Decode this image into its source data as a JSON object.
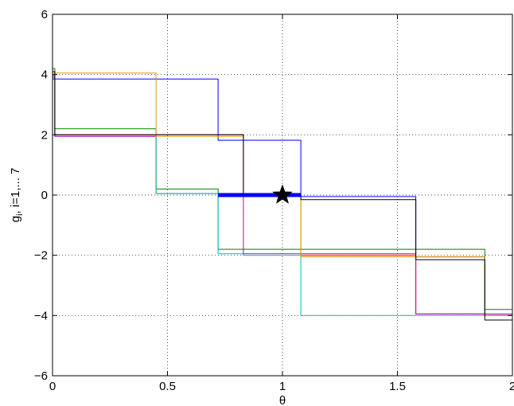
{
  "chart_data": {
    "type": "line",
    "title": "",
    "xlabel": "θ",
    "ylabel": "g_i, i=1,... 7",
    "xlim": [
      0,
      2
    ],
    "ylim": [
      -6,
      6
    ],
    "grid": true,
    "x_ticks": [
      0,
      0.5,
      1,
      1.5,
      2
    ],
    "x_tick_labels": [
      "0",
      "0.5",
      "1",
      "1.5",
      "2"
    ],
    "y_ticks": [
      -6,
      -4,
      -2,
      0,
      2,
      4,
      6
    ],
    "y_tick_labels": [
      "−6",
      "−4",
      "−2",
      "0",
      "2",
      "4",
      "6"
    ],
    "series": [
      {
        "color": "#ff0000",
        "x": [
          0,
          0.01,
          0.01,
          0.45,
          0.45,
          0.72,
          0.72,
          1.08,
          1.08,
          1.58,
          1.58,
          1.88,
          1.88,
          2
        ],
        "y": [
          4.0,
          4.0,
          2.0,
          2.0,
          0.05,
          0.05,
          0,
          0,
          -2.0,
          -2.0,
          -3.95,
          -3.95,
          -4.0,
          -4.0
        ]
      },
      {
        "color": "#0000ff",
        "x": [
          0,
          0.01,
          0.01,
          0.72,
          0.72,
          1.08,
          1.08,
          1.58,
          1.58,
          1.88,
          1.88,
          2
        ],
        "y": [
          3.85,
          3.85,
          3.85,
          3.85,
          1.82,
          1.82,
          -0.05,
          -0.05,
          -2.05,
          -2.05,
          -4.0,
          -4.0
        ]
      },
      {
        "color": "#008000",
        "x": [
          0,
          0.01,
          0.01,
          0.45,
          0.45,
          0.72,
          0.72,
          1.08,
          1.08,
          1.58,
          1.58,
          1.88,
          1.88,
          2
        ],
        "y": [
          4.2,
          4.2,
          2.2,
          2.2,
          0.2,
          0.2,
          -1.8,
          -1.8,
          -1.8,
          -1.8,
          -1.8,
          -1.8,
          -3.8,
          -3.8
        ]
      },
      {
        "color": "#00bfbf",
        "x": [
          0,
          0.01,
          0.01,
          0.45,
          0.45,
          0.72,
          0.72,
          0.83,
          0.83,
          1.08,
          1.08,
          2
        ],
        "y": [
          3.9,
          3.9,
          1.95,
          1.95,
          0.05,
          0.05,
          -1.95,
          -1.95,
          -2.0,
          -2.0,
          -4.0,
          -4.0
        ]
      },
      {
        "color": "#bf00bf",
        "x": [
          0,
          0.01,
          0.01,
          0.45,
          0.45,
          0.72,
          0.72,
          0.83,
          0.83,
          1.58,
          1.58,
          1.88,
          1.88,
          2
        ],
        "y": [
          3.95,
          3.95,
          1.95,
          1.95,
          2.0,
          2.0,
          2.0,
          2.0,
          -1.95,
          -1.95,
          -3.95,
          -3.95,
          -3.95,
          -3.95
        ]
      },
      {
        "color": "#e69a00",
        "x": [
          0,
          0.01,
          0.01,
          0.45,
          0.45,
          0.83,
          0.83,
          1.08,
          1.08,
          1.58,
          1.58,
          1.88,
          1.88,
          2
        ],
        "y": [
          4.05,
          4.05,
          4.05,
          4.05,
          1.95,
          1.95,
          0,
          0,
          -2.05,
          -2.05,
          -2.05,
          -2.05,
          -4.0,
          -4.0
        ]
      },
      {
        "color": "#000000",
        "x": [
          0,
          0.01,
          0.01,
          0.45,
          0.45,
          0.83,
          0.83,
          1.08,
          1.08,
          1.58,
          1.58,
          1.88,
          1.88,
          2
        ],
        "y": [
          4.1,
          4.1,
          2.0,
          2.0,
          2.0,
          2.0,
          0,
          0,
          -0.15,
          -0.15,
          -2.15,
          -2.15,
          -4.15,
          -4.15
        ]
      }
    ],
    "highlight_segment": {
      "color": "#0000ff",
      "x": [
        0.72,
        1.08
      ],
      "y": [
        0,
        0
      ]
    },
    "marker": {
      "shape": "star",
      "color": "#000000",
      "x": 1.0,
      "y": 0
    }
  }
}
